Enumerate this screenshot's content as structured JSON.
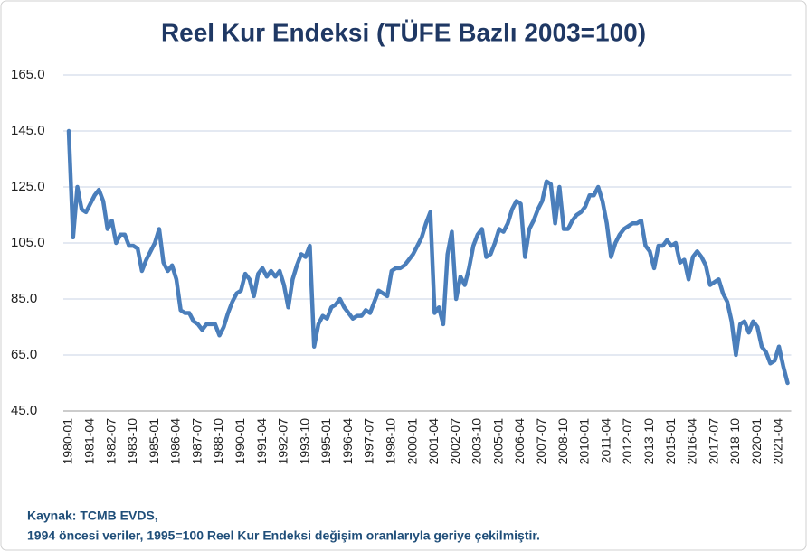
{
  "chart_data": {
    "type": "line",
    "title": "Reel Kur Endeksi (TÜFE Bazlı 2003=100)",
    "notes": [
      "Kaynak: TCMB EVDS,",
      "1994 öncesi veriler, 1995=100 Reel Kur Endeksi değişim oranlarıyla geriye çekilmiştir."
    ],
    "categories": [
      "1980-01",
      null,
      null,
      null,
      null,
      "1981-04",
      null,
      null,
      null,
      null,
      "1982-07",
      null,
      null,
      null,
      null,
      "1983-10",
      null,
      null,
      null,
      null,
      "1985-01",
      null,
      null,
      null,
      null,
      "1986-04",
      null,
      null,
      null,
      null,
      "1987-07",
      null,
      null,
      null,
      null,
      "1988-10",
      null,
      null,
      null,
      null,
      "1990-01",
      null,
      null,
      null,
      null,
      "1991-04",
      null,
      null,
      null,
      null,
      "1992-07",
      null,
      null,
      null,
      null,
      "1993-10",
      null,
      null,
      null,
      null,
      "1995-01",
      null,
      null,
      null,
      null,
      "1996-04",
      null,
      null,
      null,
      null,
      "1997-07",
      null,
      null,
      null,
      null,
      "1998-10",
      null,
      null,
      null,
      null,
      "2000-01",
      null,
      null,
      null,
      null,
      "2001-04",
      null,
      null,
      null,
      null,
      "2002-07",
      null,
      null,
      null,
      null,
      "2003-10",
      null,
      null,
      null,
      null,
      "2005-01",
      null,
      null,
      null,
      null,
      "2006-04",
      null,
      null,
      null,
      null,
      "2007-07",
      null,
      null,
      null,
      null,
      "2008-10",
      null,
      null,
      null,
      null,
      "2010-01",
      null,
      null,
      null,
      null,
      "2011-04",
      null,
      null,
      null,
      null,
      "2012-07",
      null,
      null,
      null,
      null,
      "2013-10",
      null,
      null,
      null,
      null,
      "2015-01",
      null,
      null,
      null,
      null,
      "2016-04",
      null,
      null,
      null,
      null,
      "2017-07",
      null,
      null,
      null,
      null,
      "2018-10",
      null,
      null,
      null,
      null,
      "2020-01",
      null,
      null,
      null,
      null,
      "2021-04",
      null,
      null
    ],
    "series": [
      {
        "name": "Reel Kur Endeksi",
        "color": "#4a7ebb",
        "values": [
          145,
          107,
          125,
          117,
          116,
          119,
          122,
          124,
          120,
          110,
          113,
          105,
          108,
          108,
          104,
          104,
          103,
          95,
          99,
          102,
          105,
          110,
          98,
          95,
          97,
          92,
          81,
          80,
          80,
          77,
          76,
          74,
          76,
          76,
          76,
          72,
          75,
          80,
          84,
          87,
          88,
          94,
          92,
          86,
          94,
          96,
          93,
          95,
          93,
          95,
          90,
          82,
          92,
          97,
          101,
          100,
          104,
          68,
          76,
          79,
          78,
          82,
          83,
          85,
          82,
          80,
          78,
          79,
          79,
          81,
          80,
          84,
          88,
          87,
          86,
          95,
          96,
          96,
          97,
          99,
          101,
          104,
          107,
          112,
          116,
          80,
          82,
          76,
          101,
          109,
          85,
          93,
          90,
          96,
          104,
          108,
          110,
          100,
          101,
          105,
          110,
          109,
          112,
          117,
          120,
          119,
          100,
          110,
          113,
          117,
          120,
          127,
          126,
          112,
          125,
          110,
          110,
          113,
          115,
          116,
          118,
          122,
          122,
          125,
          120,
          112,
          100,
          105,
          108,
          110,
          111,
          112,
          112,
          113,
          104,
          102,
          96,
          104,
          104,
          106,
          104,
          105,
          98,
          99,
          92,
          100,
          102,
          100,
          97,
          90,
          91,
          92,
          87,
          84,
          77,
          65,
          76,
          77,
          73,
          77,
          75,
          68,
          66,
          62,
          63,
          68,
          61,
          55
        ]
      }
    ],
    "ylim": [
      45,
      165
    ],
    "yticks": [
      {
        "value": 45,
        "label": "45.0"
      },
      {
        "value": 65,
        "label": "65.0"
      },
      {
        "value": 85,
        "label": "85.0"
      },
      {
        "value": 105,
        "label": "105.0"
      },
      {
        "value": 125,
        "label": "125.0"
      },
      {
        "value": 145,
        "label": "145.0"
      },
      {
        "value": 165,
        "label": "165.0"
      }
    ],
    "grid": true
  }
}
